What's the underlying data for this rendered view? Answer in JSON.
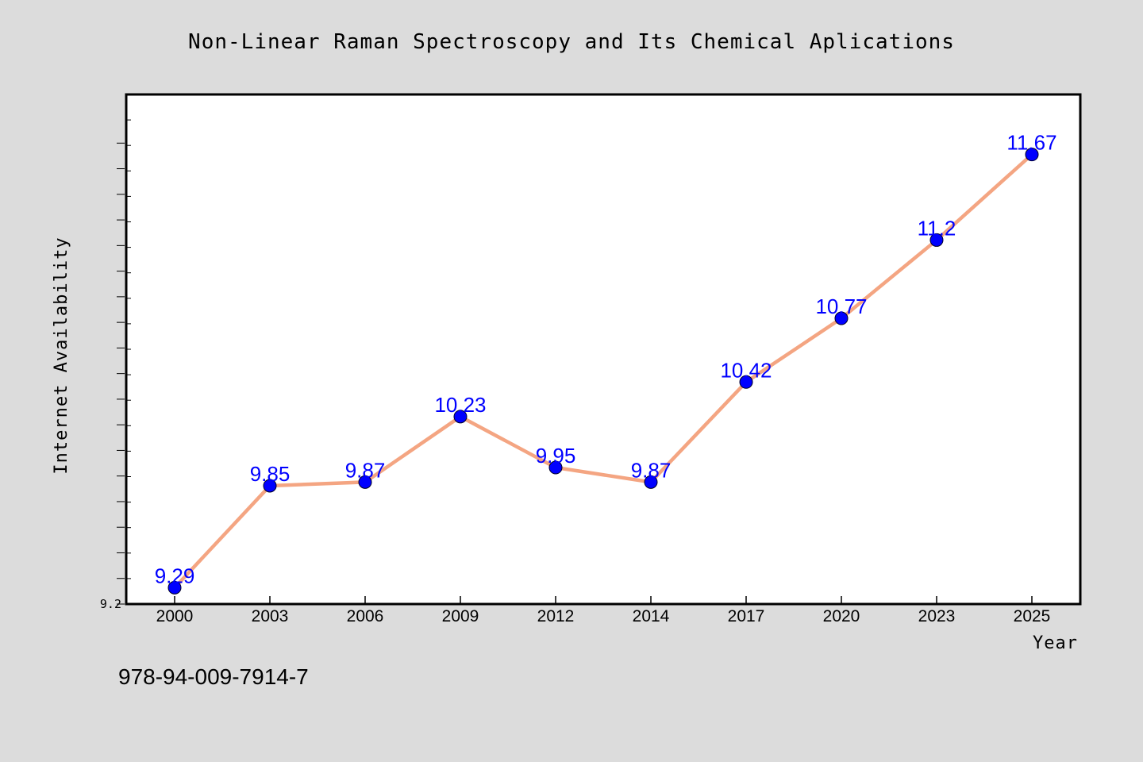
{
  "chart_data": {
    "type": "line",
    "title": "Non-Linear Raman Spectroscopy and Its Chemical Aplications",
    "xlabel": "Year",
    "ylabel": "Internet Availability",
    "categories": [
      "2000",
      "2003",
      "2006",
      "2009",
      "2012",
      "2014",
      "2017",
      "2020",
      "2023",
      "2025"
    ],
    "series": [
      {
        "values": [
          9.29,
          9.85,
          9.87,
          10.23,
          9.95,
          9.87,
          10.42,
          10.77,
          11.2,
          11.67
        ]
      }
    ],
    "data_labels": [
      "9.29",
      "9.85",
      "9.87",
      "10.23",
      "9.95",
      "9.87",
      "10.42",
      "10.77",
      "11.2",
      "11.67"
    ],
    "ylim": [
      9.2,
      12.0
    ],
    "y_tick_labels": [
      "9.2"
    ],
    "grid": false,
    "line_color": "#f4a582",
    "marker_color": "#0000ff",
    "label_color": "#0000ff",
    "background_color": "#dcdcdc",
    "plot_background": "#ffffff"
  },
  "footer_text": "978-94-009-7914-7"
}
